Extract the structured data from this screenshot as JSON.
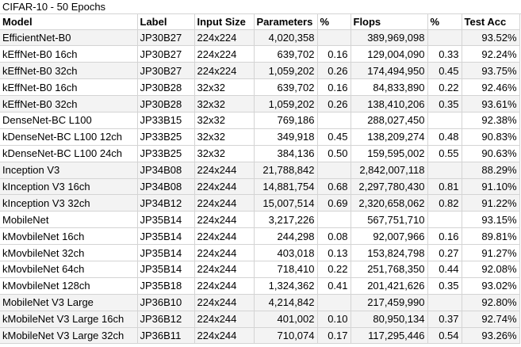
{
  "sheet": {
    "title": "CIFAR-10 - 50 Epochs",
    "headers": [
      "Model",
      "Label",
      "Input Size",
      "Parameters",
      "%",
      "Flops",
      "%",
      "Test Acc"
    ],
    "rows": [
      {
        "model": "EfficientNet-B0",
        "label": "JP30B27",
        "input": "224x224",
        "params": "4,020,358",
        "pp": "",
        "flops": "389,969,098",
        "fp": "",
        "acc": "93.52%",
        "shaded": true
      },
      {
        "model": "kEffNet-B0 16ch",
        "label": "JP30B27",
        "input": "224x224",
        "params": "639,702",
        "pp": "0.16",
        "flops": "129,004,090",
        "fp": "0.33",
        "acc": "92.24%",
        "shaded": false
      },
      {
        "model": "kEffNet-B0 32ch",
        "label": "JP30B27",
        "input": "224x224",
        "params": "1,059,202",
        "pp": "0.26",
        "flops": "174,494,950",
        "fp": "0.45",
        "acc": "93.75%",
        "shaded": true
      },
      {
        "model": "kEffNet-B0 16ch",
        "label": "JP30B28",
        "input": "32x32",
        "params": "639,702",
        "pp": "0.16",
        "flops": "84,833,890",
        "fp": "0.22",
        "acc": "92.46%",
        "shaded": false
      },
      {
        "model": "kEffNet-B0 32ch",
        "label": "JP30B28",
        "input": "32x32",
        "params": "1,059,202",
        "pp": "0.26",
        "flops": "138,410,206",
        "fp": "0.35",
        "acc": "93.61%",
        "shaded": true
      },
      {
        "model": "DenseNet-BC L100",
        "label": "JP33B15",
        "input": "32x32",
        "params": "769,186",
        "pp": "",
        "flops": "288,027,450",
        "fp": "",
        "acc": "92.38%",
        "shaded": false
      },
      {
        "model": "kDenseNet-BC L100 12ch",
        "label": "JP33B25",
        "input": "32x32",
        "params": "349,918",
        "pp": "0.45",
        "flops": "138,209,274",
        "fp": "0.48",
        "acc": "90.83%",
        "shaded": false
      },
      {
        "model": "kDenseNet-BC L100 24ch",
        "label": "JP33B25",
        "input": "32x32",
        "params": "384,136",
        "pp": "0.50",
        "flops": "159,595,002",
        "fp": "0.55",
        "acc": "90.63%",
        "shaded": false
      },
      {
        "model": "Inception V3",
        "label": "JP34B08",
        "input": "224x244",
        "params": "21,788,842",
        "pp": "",
        "flops": "2,842,007,118",
        "fp": "",
        "acc": "88.29%",
        "shaded": true
      },
      {
        "model": "kInception V3 16ch",
        "label": "JP34B08",
        "input": "224x244",
        "params": "14,881,754",
        "pp": "0.68",
        "flops": "2,297,780,430",
        "fp": "0.81",
        "acc": "91.10%",
        "shaded": true
      },
      {
        "model": "kInception V3 32ch",
        "label": "JP34B12",
        "input": "224x244",
        "params": "15,007,514",
        "pp": "0.69",
        "flops": "2,320,658,062",
        "fp": "0.82",
        "acc": "91.22%",
        "shaded": true
      },
      {
        "model": "MobileNet",
        "label": "JP35B14",
        "input": "224x244",
        "params": "3,217,226",
        "pp": "",
        "flops": "567,751,710",
        "fp": "",
        "acc": "93.15%",
        "shaded": false
      },
      {
        "model": "kMovbileNet 16ch",
        "label": "JP35B14",
        "input": "224x244",
        "params": "244,298",
        "pp": "0.08",
        "flops": "92,007,966",
        "fp": "0.16",
        "acc": "89.81%",
        "shaded": false
      },
      {
        "model": "kMovbileNet 32ch",
        "label": "JP35B14",
        "input": "224x244",
        "params": "403,018",
        "pp": "0.13",
        "flops": "153,824,798",
        "fp": "0.27",
        "acc": "91.27%",
        "shaded": false
      },
      {
        "model": "kMovbileNet 64ch",
        "label": "JP35B14",
        "input": "224x244",
        "params": "718,410",
        "pp": "0.22",
        "flops": "251,768,350",
        "fp": "0.44",
        "acc": "92.08%",
        "shaded": false
      },
      {
        "model": "kMovbileNet 128ch",
        "label": "JP35B18",
        "input": "224x244",
        "params": "1,324,362",
        "pp": "0.41",
        "flops": "201,421,626",
        "fp": "0.35",
        "acc": "93.02%",
        "shaded": false
      },
      {
        "model": "MobileNet V3 Large",
        "label": "JP36B10",
        "input": "224x244",
        "params": "4,214,842",
        "pp": "",
        "flops": "217,459,990",
        "fp": "",
        "acc": "92.80%",
        "shaded": true
      },
      {
        "model": "kMobileNet V3 Large 16ch",
        "label": "JP36B12",
        "input": "224x244",
        "params": "401,002",
        "pp": "0.10",
        "flops": "80,950,134",
        "fp": "0.37",
        "acc": "92.74%",
        "shaded": true
      },
      {
        "model": "kMobileNet V3 Large 32ch",
        "label": "JP36B11",
        "input": "224x244",
        "params": "710,074",
        "pp": "0.17",
        "flops": "117,295,446",
        "fp": "0.54",
        "acc": "93.26%",
        "shaded": true
      }
    ]
  }
}
